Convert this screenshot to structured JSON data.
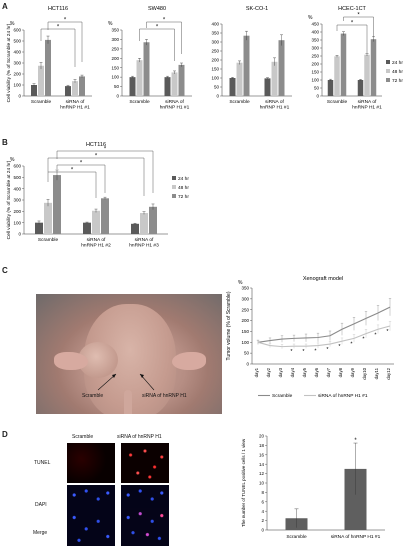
{
  "panels": {
    "A": "A",
    "B": "B",
    "C": "C",
    "D": "D"
  },
  "colors": {
    "h24": "#5a5a5a",
    "h48": "#c8c8c8",
    "h72": "#8c8c8c",
    "line_scramble": "#8a8a8a",
    "line_sirna": "#c2c2c2",
    "bar_d": "#5f5f5f"
  },
  "chart_data": [
    {
      "id": "A1",
      "type": "bar",
      "title": "HCT116",
      "unit": "%",
      "ylabel": "Cell viability (% of Scramble at 24 hr)",
      "yticks": [
        0,
        100,
        200,
        300,
        400,
        500,
        600
      ],
      "ylim": [
        0,
        600
      ],
      "categories": [
        "Scramble",
        "siRNA of hnRNP H1 #1"
      ],
      "series": [
        {
          "name": "24 hr",
          "values": [
            100,
            90
          ],
          "errors": [
            12,
            8
          ]
        },
        {
          "name": "48 hr",
          "values": [
            275,
            135
          ],
          "errors": [
            30,
            15
          ]
        },
        {
          "name": "72 hr",
          "values": [
            510,
            178
          ],
          "errors": [
            35,
            12
          ]
        }
      ],
      "sig": [
        "*",
        "*"
      ]
    },
    {
      "id": "A2",
      "type": "bar",
      "title": "SW480",
      "unit": "%",
      "yticks": [
        0,
        50,
        100,
        150,
        200,
        250,
        300,
        350
      ],
      "ylim": [
        0,
        350
      ],
      "categories": [
        "Scramble",
        "siRNA of hnRNP H1 #1"
      ],
      "series": [
        {
          "name": "24 hr",
          "values": [
            100,
            100
          ],
          "errors": [
            5,
            5
          ]
        },
        {
          "name": "48 hr",
          "values": [
            190,
            125
          ],
          "errors": [
            10,
            8
          ]
        },
        {
          "name": "72 hr",
          "values": [
            285,
            165
          ],
          "errors": [
            15,
            10
          ]
        }
      ],
      "sig": [
        "*",
        "*"
      ]
    },
    {
      "id": "A3",
      "type": "bar",
      "title": "SK-CO-1",
      "yticks": [
        0,
        50,
        100,
        150,
        200,
        250,
        300,
        350,
        400
      ],
      "ylim": [
        0,
        400
      ],
      "categories": [
        "Scramble",
        "siRNA of hnRNP H1 #1"
      ],
      "series": [
        {
          "name": "24 hr",
          "values": [
            100,
            98
          ],
          "errors": [
            4,
            4
          ]
        },
        {
          "name": "48 hr",
          "values": [
            185,
            190
          ],
          "errors": [
            10,
            22
          ]
        },
        {
          "name": "72 hr",
          "values": [
            335,
            310
          ],
          "errors": [
            25,
            30
          ]
        }
      ],
      "sig": []
    },
    {
      "id": "A4",
      "type": "bar",
      "title": "HCEC-1CT",
      "unit": "%",
      "yticks": [
        0,
        50,
        100,
        150,
        200,
        250,
        300,
        350,
        400,
        450
      ],
      "ylim": [
        0,
        450
      ],
      "categories": [
        "Scramble",
        "siRNA of hnRNP H1 #1"
      ],
      "series": [
        {
          "name": "24 hr",
          "values": [
            100,
            100
          ],
          "errors": [
            5,
            4
          ]
        },
        {
          "name": "48 hr",
          "values": [
            248,
            258
          ],
          "errors": [
            6,
            8
          ]
        },
        {
          "name": "72 hr",
          "values": [
            390,
            355
          ],
          "errors": [
            12,
            15
          ]
        }
      ],
      "sig": [
        "*",
        "*"
      ],
      "legend": [
        "24 hr",
        "48 hr",
        "72 hr"
      ]
    },
    {
      "id": "B",
      "type": "bar",
      "title": "HCT116",
      "unit": "%",
      "ylabel": "Cell viability (% of Scramble at 24 hr)",
      "yticks": [
        0,
        100,
        200,
        300,
        400,
        500,
        600
      ],
      "ylim": [
        0,
        600
      ],
      "categories": [
        "Scramble",
        "siRNA of hnRNP H1 #2",
        "siRNA of hnRNP H1 #3"
      ],
      "series": [
        {
          "name": "24 hr",
          "values": [
            100,
            100,
            90
          ],
          "errors": [
            15,
            5,
            5
          ]
        },
        {
          "name": "48 hr",
          "values": [
            275,
            205,
            185
          ],
          "errors": [
            30,
            15,
            12
          ]
        },
        {
          "name": "72 hr",
          "values": [
            520,
            315,
            240
          ],
          "errors": [
            45,
            10,
            25
          ]
        }
      ],
      "sig": [
        "*",
        "*",
        "*",
        "*"
      ],
      "legend": [
        "24 hr",
        "48 hr",
        "72 hr"
      ]
    },
    {
      "id": "C",
      "type": "line",
      "title": "Xenograft model",
      "unit": "%",
      "ylabel": "Tumor volume (% of Scramble)",
      "yticks": [
        0,
        50,
        100,
        150,
        200,
        250,
        300,
        350
      ],
      "ylim": [
        0,
        350
      ],
      "categories": [
        "day1",
        "day2",
        "day3",
        "day4",
        "day5",
        "day6",
        "day7",
        "day8",
        "day9",
        "day10",
        "day11",
        "day12"
      ],
      "series": [
        {
          "name": "Scramble",
          "values": [
            100,
            108,
            115,
            118,
            120,
            122,
            130,
            160,
            185,
            210,
            235,
            262
          ],
          "errors": [
            10,
            12,
            15,
            15,
            18,
            20,
            22,
            28,
            30,
            32,
            35,
            40
          ]
        },
        {
          "name": "siRNA of hnRNP H1 #1",
          "values": [
            100,
            85,
            80,
            82,
            82,
            85,
            92,
            105,
            118,
            140,
            160,
            175
          ],
          "errors": [
            8,
            10,
            10,
            10,
            10,
            12,
            12,
            15,
            18,
            20,
            20,
            22
          ]
        }
      ],
      "sig_days": [
        3,
        4,
        5,
        6,
        7,
        8,
        9,
        10,
        11
      ]
    },
    {
      "id": "D",
      "type": "bar",
      "unit": "",
      "ylabel": "The number of TUNEL positive cells / 1 view",
      "yticks": [
        0,
        2,
        4,
        6,
        8,
        10,
        12,
        14,
        16,
        18,
        20
      ],
      "ylim": [
        0,
        20
      ],
      "categories": [
        "Scramble",
        "siRNA of hnRNP H1 #1"
      ],
      "values": [
        2.5,
        13
      ],
      "errors": [
        2,
        5.5
      ],
      "sig": "*"
    }
  ],
  "photo": {
    "label_scramble": "Scramble",
    "label_sirna": "siRNA of hnRNP H1"
  },
  "micro": {
    "col1": "Scramble",
    "col2": "siRNA of hnRNP H1",
    "row1": "TUNEL",
    "row2": "DAPI",
    "row3": "Merge"
  }
}
